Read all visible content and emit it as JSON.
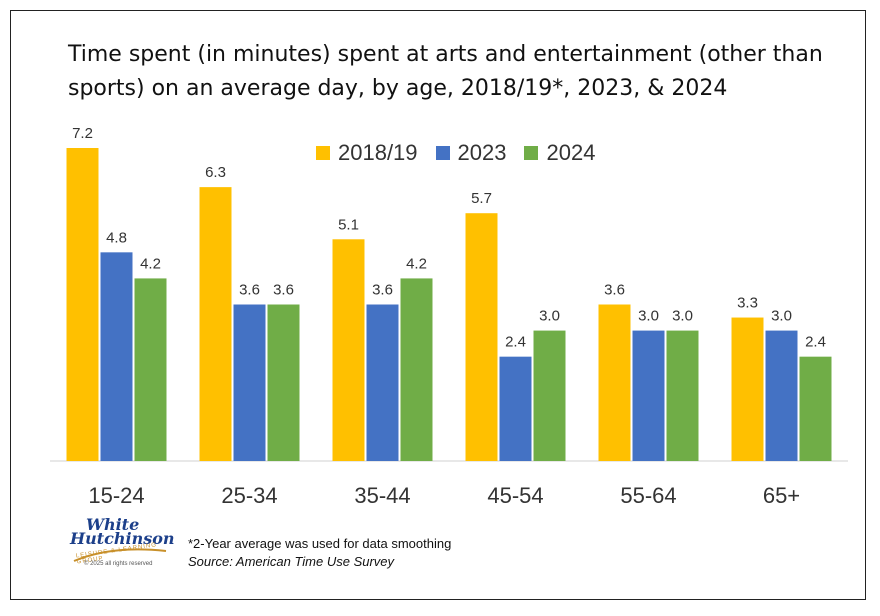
{
  "chart_data": {
    "type": "bar",
    "title": "Time spent (in minutes) spent at arts and entertainment (other than sports) on an average day, by age, 2018/19*, 2023, & 2024",
    "categories": [
      "15-24",
      "25-34",
      "35-44",
      "45-54",
      "55-64",
      "65+"
    ],
    "series": [
      {
        "name": "2018/19",
        "color": "#FFC000",
        "values": [
          7.2,
          6.3,
          5.1,
          5.7,
          3.6,
          3.3
        ]
      },
      {
        "name": "2023",
        "color": "#4472C4",
        "values": [
          4.8,
          3.6,
          3.6,
          2.4,
          3.0,
          3.0
        ]
      },
      {
        "name": "2024",
        "color": "#70AD47",
        "values": [
          4.2,
          3.6,
          4.2,
          3.0,
          3.0,
          2.4
        ]
      }
    ],
    "ylim": [
      0,
      7.2
    ],
    "grid": false,
    "legend": "top-center"
  },
  "footnote": {
    "note": "*2-Year average was used for data smoothing",
    "source": "Source: American Time Use Survey"
  },
  "logo": {
    "line1": "White",
    "line2": "Hutchinson",
    "tagline": "LEISURE & LEARNING GROUP",
    "copyright": "© 2025 all rights reserved"
  }
}
